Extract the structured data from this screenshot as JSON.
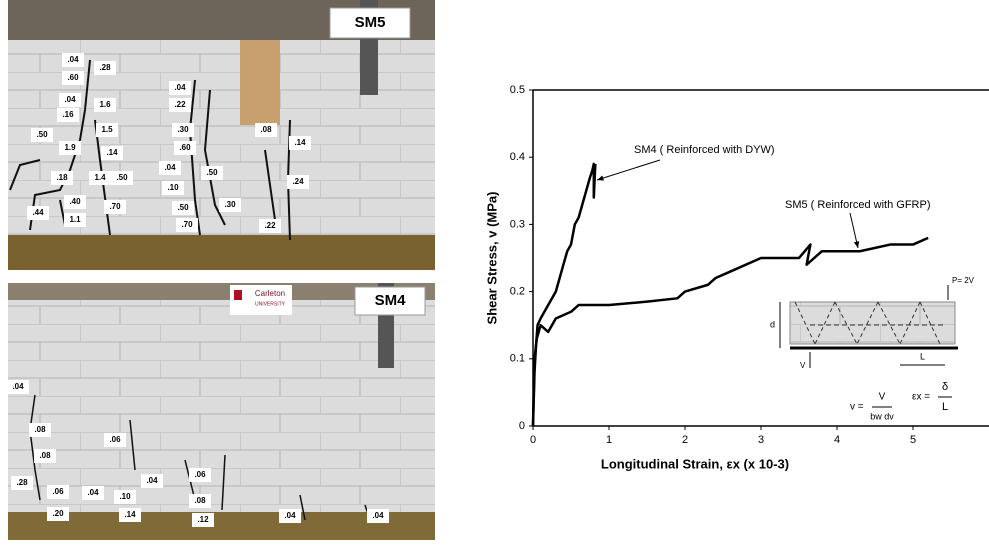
{
  "photos": [
    {
      "label": "SM5",
      "crack_labels": [
        ".04",
        ".60",
        ".28",
        ".04",
        ".16",
        "1.6",
        ".50",
        "1.9",
        "1.5",
        ".14",
        ".18",
        "1.4",
        ".50",
        ".40",
        ".44",
        "1.1",
        ".70",
        ".04",
        ".22",
        ".30",
        ".60",
        ".04",
        ".10",
        ".50",
        ".50",
        ".70",
        ".30",
        ".08",
        ".14",
        ".24",
        ".22"
      ]
    },
    {
      "label": "SM4",
      "logo": [
        "Carleton",
        "UNIVERSITY"
      ],
      "crack_labels": [
        ".04",
        ".08",
        ".06",
        ".08",
        ".04",
        ".06",
        ".28",
        ".06",
        ".04",
        ".10",
        ".08",
        ".14",
        ".20",
        ".12",
        ".04",
        ".04"
      ]
    }
  ],
  "chart_data": {
    "type": "line",
    "y_label": "Shear Stress, v (MPa)",
    "x_label": "Longitudinal Strain, εx (x 10-3)",
    "xlim": [
      0,
      6
    ],
    "ylim": [
      0,
      0.5
    ],
    "xticks": [
      0,
      1,
      2,
      3,
      4,
      5
    ],
    "yticks": [
      0,
      0.1,
      0.2,
      0.3,
      0.4,
      0.5
    ],
    "series": [
      {
        "name": "SM4 ( Reinforced with DYW)",
        "color": "#000000",
        "x": [
          0,
          0.02,
          0.04,
          0.06,
          0.1,
          0.15,
          0.2,
          0.3,
          0.35,
          0.4,
          0.45,
          0.5,
          0.55,
          0.6,
          0.65,
          0.7,
          0.75,
          0.78,
          0.8,
          0.8,
          0.82
        ],
        "values": [
          0,
          0.08,
          0.12,
          0.15,
          0.16,
          0.17,
          0.18,
          0.2,
          0.22,
          0.24,
          0.26,
          0.27,
          0.3,
          0.31,
          0.33,
          0.35,
          0.37,
          0.38,
          0.39,
          0.34,
          0.39
        ]
      },
      {
        "name": "SM5 ( Reinforced with GFRP)",
        "color": "#000000",
        "x": [
          0,
          0.02,
          0.05,
          0.1,
          0.2,
          0.3,
          0.5,
          0.6,
          1,
          1.5,
          1.9,
          2,
          2.3,
          2.4,
          2.6,
          3,
          3.5,
          3.65,
          3.6,
          3.8,
          4,
          4.3,
          4.7,
          5,
          5.2
        ],
        "values": [
          0,
          0.1,
          0.13,
          0.15,
          0.14,
          0.16,
          0.17,
          0.18,
          0.18,
          0.185,
          0.19,
          0.2,
          0.21,
          0.22,
          0.23,
          0.25,
          0.25,
          0.27,
          0.24,
          0.26,
          0.26,
          0.26,
          0.27,
          0.27,
          0.28
        ]
      }
    ],
    "inset": {
      "load": "P= 2V",
      "depth": "d",
      "length": "L",
      "shear": "V",
      "stress_eq": "v =",
      "stress_num": "V",
      "stress_den": "bw dv",
      "strain_eq": "εx =",
      "strain_num": "δ",
      "strain_den": "L"
    }
  }
}
